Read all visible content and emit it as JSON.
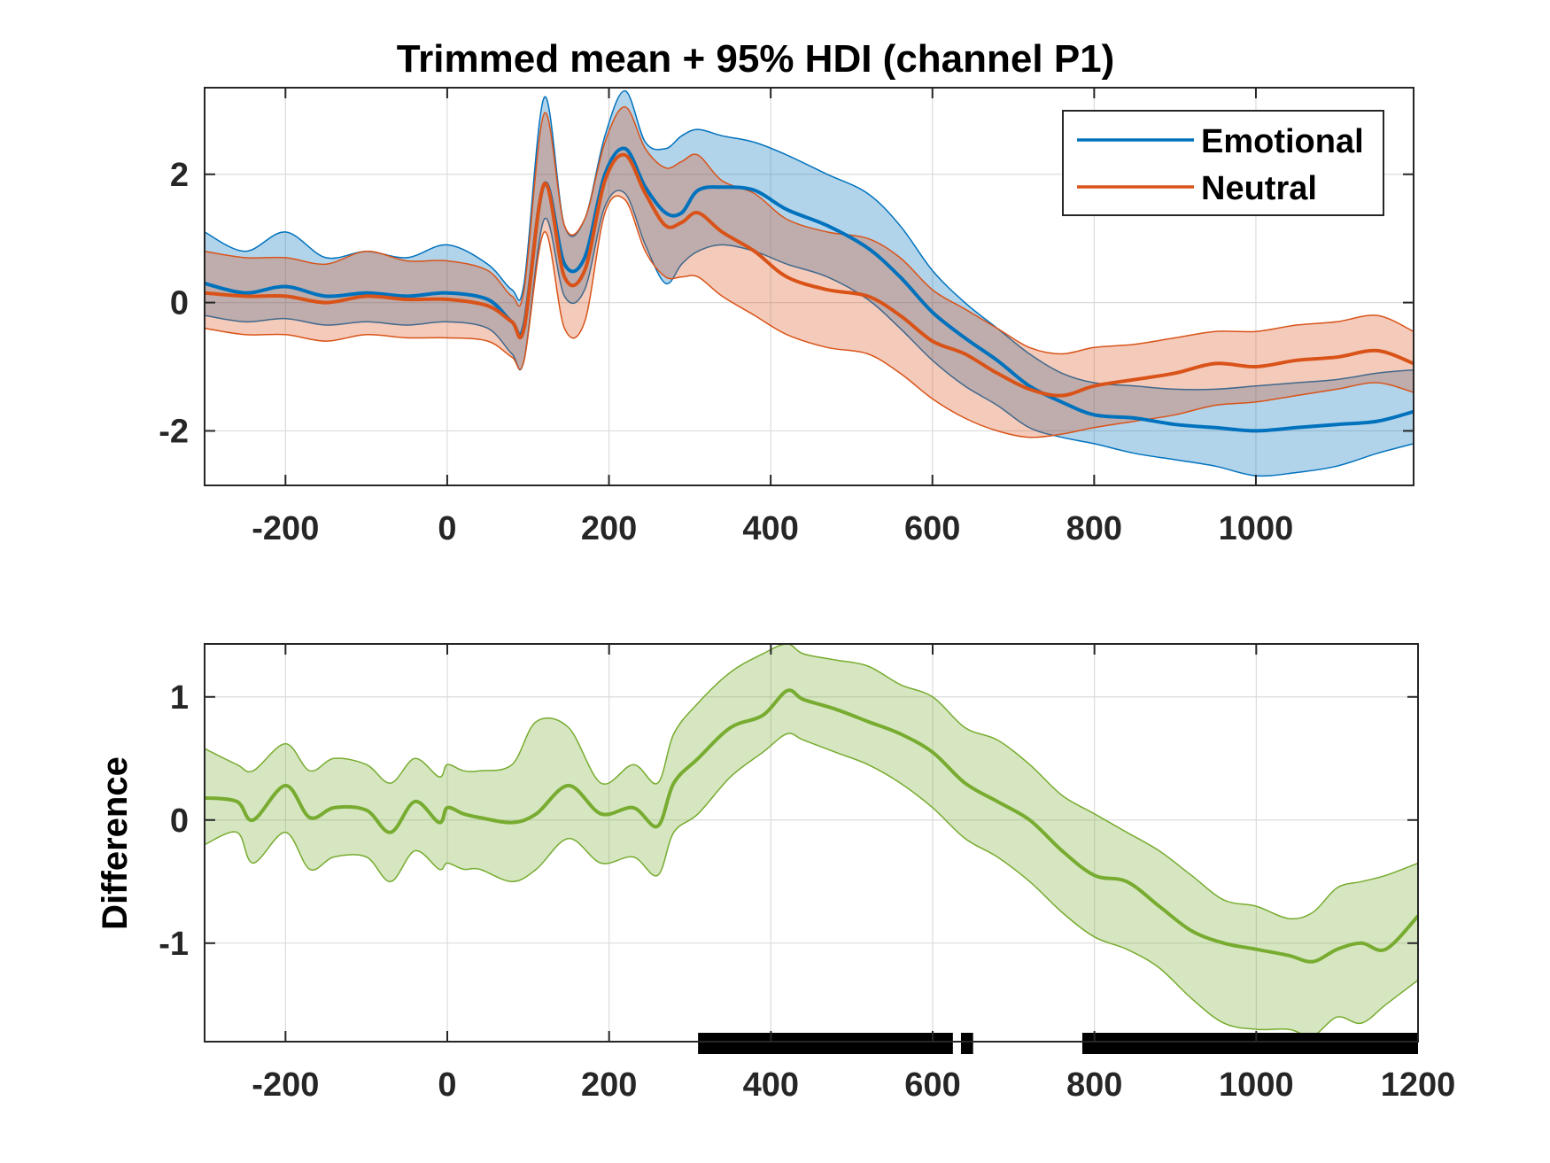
{
  "colors": {
    "emotional": "#0072BD",
    "neutral": "#D95319",
    "difference": "#77AC30",
    "significance": "#000000"
  },
  "chart_data": [
    {
      "type": "line",
      "title": "Trimmed mean + 95% HDI (channel P1)",
      "xlabel": "",
      "ylabel": "",
      "xlim": [
        -300,
        1195
      ],
      "ylim": [
        -2.85,
        3.35
      ],
      "xticks": [
        -200,
        0,
        200,
        400,
        600,
        800,
        1000
      ],
      "xtick_labels": [
        "-200",
        "0",
        "200",
        "400",
        "600",
        "800",
        "1000"
      ],
      "yticks": [
        -2,
        0,
        2
      ],
      "ytick_labels": [
        "-2",
        "0",
        "2"
      ],
      "grid": true,
      "legend": {
        "position": "top-right",
        "entries": [
          "Emotional",
          "Neutral"
        ]
      },
      "bands": "95% HDI shaded around each series",
      "series": [
        {
          "name": "Emotional",
          "x": [
            -300,
            -250,
            -200,
            -150,
            -100,
            -50,
            0,
            50,
            80,
            95,
            120,
            145,
            170,
            195,
            220,
            245,
            270,
            290,
            310,
            340,
            380,
            420,
            470,
            520,
            560,
            600,
            640,
            680,
            720,
            760,
            800,
            850,
            900,
            950,
            1000,
            1050,
            1100,
            1150,
            1195
          ],
          "y": [
            0.3,
            0.15,
            0.25,
            0.1,
            0.15,
            0.1,
            0.15,
            0.05,
            -0.3,
            -0.35,
            1.85,
            0.6,
            0.7,
            2.0,
            2.4,
            1.8,
            1.4,
            1.4,
            1.75,
            1.8,
            1.75,
            1.45,
            1.2,
            0.85,
            0.4,
            -0.15,
            -0.55,
            -0.9,
            -1.3,
            -1.55,
            -1.75,
            -1.8,
            -1.9,
            -1.95,
            -2.0,
            -1.95,
            -1.9,
            -1.85,
            -1.7
          ],
          "lower": [
            -0.2,
            -0.3,
            -0.25,
            -0.35,
            -0.3,
            -0.35,
            -0.3,
            -0.4,
            -0.8,
            -0.9,
            1.3,
            0.1,
            0.2,
            1.5,
            1.7,
            0.9,
            0.3,
            0.6,
            0.8,
            0.9,
            0.8,
            0.6,
            0.4,
            0.05,
            -0.4,
            -0.9,
            -1.3,
            -1.6,
            -1.95,
            -2.1,
            -2.2,
            -2.35,
            -2.45,
            -2.55,
            -2.7,
            -2.65,
            -2.55,
            -2.35,
            -2.2
          ],
          "upper": [
            1.1,
            0.8,
            1.1,
            0.7,
            0.8,
            0.7,
            0.9,
            0.6,
            0.2,
            0.3,
            3.2,
            1.2,
            1.3,
            2.6,
            3.3,
            2.5,
            2.4,
            2.6,
            2.7,
            2.6,
            2.5,
            2.3,
            2.0,
            1.7,
            1.2,
            0.5,
            0.0,
            -0.4,
            -0.8,
            -1.1,
            -1.25,
            -1.3,
            -1.35,
            -1.35,
            -1.3,
            -1.25,
            -1.2,
            -1.1,
            -1.05
          ]
        },
        {
          "name": "Neutral",
          "x": [
            -300,
            -250,
            -200,
            -150,
            -100,
            -50,
            0,
            50,
            80,
            95,
            120,
            145,
            170,
            195,
            220,
            245,
            270,
            290,
            310,
            340,
            380,
            420,
            470,
            520,
            560,
            600,
            640,
            680,
            720,
            760,
            800,
            850,
            900,
            950,
            1000,
            1050,
            1100,
            1150,
            1195
          ],
          "y": [
            0.15,
            0.1,
            0.1,
            0.0,
            0.1,
            0.05,
            0.05,
            -0.05,
            -0.3,
            -0.4,
            1.85,
            0.4,
            0.5,
            1.9,
            2.3,
            1.7,
            1.2,
            1.25,
            1.4,
            1.1,
            0.8,
            0.4,
            0.2,
            0.1,
            -0.2,
            -0.6,
            -0.8,
            -1.1,
            -1.35,
            -1.45,
            -1.3,
            -1.2,
            -1.1,
            -0.95,
            -1.0,
            -0.9,
            -0.85,
            -0.75,
            -0.95
          ],
          "lower": [
            -0.4,
            -0.5,
            -0.5,
            -0.6,
            -0.5,
            -0.55,
            -0.55,
            -0.6,
            -0.85,
            -0.9,
            1.1,
            -0.4,
            -0.3,
            1.4,
            1.6,
            0.8,
            0.4,
            0.4,
            0.4,
            0.1,
            -0.2,
            -0.5,
            -0.7,
            -0.8,
            -1.1,
            -1.5,
            -1.8,
            -2.0,
            -2.1,
            -2.05,
            -1.95,
            -1.85,
            -1.75,
            -1.6,
            -1.55,
            -1.45,
            -1.35,
            -1.25,
            -1.4
          ],
          "upper": [
            0.8,
            0.7,
            0.7,
            0.6,
            0.8,
            0.65,
            0.65,
            0.5,
            0.1,
            0.2,
            2.95,
            1.2,
            1.3,
            2.5,
            3.05,
            2.4,
            2.1,
            2.2,
            2.3,
            1.9,
            1.7,
            1.3,
            1.1,
            1.0,
            0.7,
            0.2,
            -0.1,
            -0.4,
            -0.7,
            -0.8,
            -0.7,
            -0.65,
            -0.55,
            -0.45,
            -0.45,
            -0.35,
            -0.3,
            -0.2,
            -0.45
          ]
        }
      ]
    },
    {
      "type": "line",
      "title": "",
      "xlabel": "",
      "ylabel": "Difference",
      "xlim": [
        -300,
        1200
      ],
      "ylim": [
        -1.8,
        1.43
      ],
      "xticks": [
        -200,
        0,
        200,
        400,
        600,
        800,
        1000,
        1200
      ],
      "xtick_labels": [
        "-200",
        "0",
        "200",
        "400",
        "600",
        "800",
        "1000",
        "1200"
      ],
      "yticks": [
        -1,
        0,
        1
      ],
      "ytick_labels": [
        "-1",
        "0",
        "1"
      ],
      "grid": true,
      "series": [
        {
          "name": "",
          "x": [
            -300,
            -260,
            -240,
            -200,
            -170,
            -140,
            -100,
            -70,
            -40,
            -10,
            0,
            20,
            40,
            80,
            110,
            150,
            190,
            230,
            260,
            280,
            310,
            350,
            390,
            420,
            440,
            480,
            520,
            560,
            600,
            640,
            680,
            720,
            760,
            800,
            840,
            880,
            920,
            960,
            1000,
            1040,
            1070,
            1100,
            1130,
            1160,
            1200
          ],
          "y": [
            0.18,
            0.15,
            0.0,
            0.28,
            0.02,
            0.1,
            0.08,
            -0.1,
            0.15,
            -0.02,
            0.1,
            0.05,
            0.02,
            -0.02,
            0.05,
            0.28,
            0.05,
            0.1,
            -0.05,
            0.3,
            0.5,
            0.75,
            0.85,
            1.05,
            0.98,
            0.9,
            0.8,
            0.7,
            0.55,
            0.3,
            0.15,
            0.0,
            -0.25,
            -0.45,
            -0.5,
            -0.7,
            -0.9,
            -1.0,
            -1.05,
            -1.1,
            -1.15,
            -1.05,
            -1.0,
            -1.05,
            -0.78
          ],
          "lower": [
            -0.2,
            -0.1,
            -0.35,
            -0.1,
            -0.4,
            -0.3,
            -0.3,
            -0.5,
            -0.25,
            -0.4,
            -0.35,
            -0.4,
            -0.4,
            -0.5,
            -0.4,
            -0.15,
            -0.35,
            -0.3,
            -0.45,
            -0.1,
            0.05,
            0.35,
            0.55,
            0.7,
            0.65,
            0.55,
            0.45,
            0.3,
            0.1,
            -0.15,
            -0.3,
            -0.5,
            -0.75,
            -0.95,
            -1.05,
            -1.2,
            -1.45,
            -1.65,
            -1.7,
            -1.7,
            -1.75,
            -1.6,
            -1.65,
            -1.5,
            -1.3
          ],
          "upper": [
            0.58,
            0.45,
            0.4,
            0.62,
            0.4,
            0.5,
            0.45,
            0.3,
            0.5,
            0.35,
            0.45,
            0.4,
            0.4,
            0.45,
            0.8,
            0.75,
            0.3,
            0.45,
            0.3,
            0.7,
            0.95,
            1.2,
            1.35,
            1.43,
            1.35,
            1.3,
            1.25,
            1.1,
            1.0,
            0.75,
            0.65,
            0.45,
            0.2,
            0.05,
            -0.1,
            -0.25,
            -0.45,
            -0.65,
            -0.7,
            -0.8,
            -0.75,
            -0.55,
            -0.5,
            -0.45,
            -0.35
          ]
        }
      ],
      "significant_intervals": [
        [
          310,
          625
        ],
        [
          635,
          650
        ],
        [
          785,
          1200
        ]
      ]
    }
  ]
}
